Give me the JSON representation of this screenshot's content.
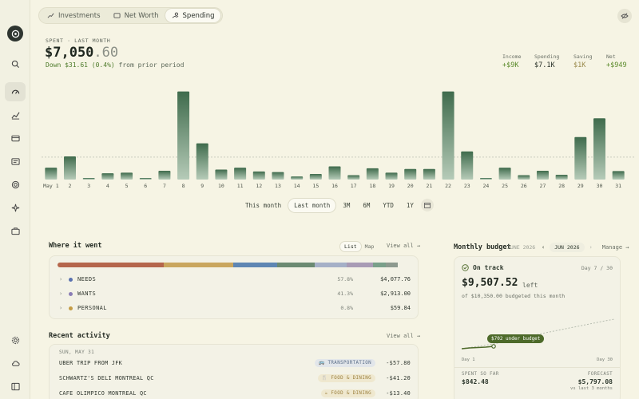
{
  "nav": {
    "tabs": [
      {
        "label": "Investments",
        "icon": "trend-up-icon",
        "active": false
      },
      {
        "label": "Net Worth",
        "icon": "wallet-icon",
        "active": false
      },
      {
        "label": "Spending",
        "icon": "hand-coins-icon",
        "active": true
      }
    ]
  },
  "sidebar": {
    "icons": [
      "logo-icon",
      "search-icon",
      "dashboard-icon",
      "chart-icon",
      "card-icon",
      "receipt-icon",
      "target-icon",
      "sparkle-icon",
      "briefcase-icon",
      "settings-icon",
      "cloud-icon",
      "collapse-icon"
    ]
  },
  "summary": {
    "label": "SPENT · LAST MONTH",
    "amount_main": "$7,050",
    "amount_cents": ".60",
    "delta_neg": "Down $31.61 (0.4%)",
    "delta_rest": " from prior period"
  },
  "stats": [
    {
      "label": "Income",
      "value": "+$9K"
    },
    {
      "label": "Spending",
      "value": "$7.1K"
    },
    {
      "label": "Saving",
      "value": "$1K"
    },
    {
      "label": "Net",
      "value": "+$949"
    }
  ],
  "chart_data": {
    "type": "bar",
    "categories": [
      "May 1",
      "2",
      "3",
      "4",
      "5",
      "6",
      "7",
      "8",
      "9",
      "10",
      "11",
      "12",
      "13",
      "14",
      "15",
      "16",
      "17",
      "18",
      "19",
      "20",
      "21",
      "22",
      "23",
      "24",
      "25",
      "26",
      "27",
      "28",
      "29",
      "30",
      "31"
    ],
    "values": [
      95,
      185,
      8,
      50,
      55,
      8,
      70,
      705,
      290,
      80,
      95,
      65,
      60,
      25,
      45,
      105,
      35,
      90,
      55,
      85,
      85,
      705,
      225,
      8,
      95,
      35,
      70,
      38,
      340,
      490,
      68
    ],
    "ylim": [
      0,
      760
    ],
    "avg_line": 180,
    "colors": {
      "bar_top": "#3f6b4c",
      "bar_bottom": "#b6cbb8"
    }
  },
  "periods": {
    "options": [
      "This month",
      "Last month",
      "3M",
      "6M",
      "YTD",
      "1Y"
    ],
    "active": "Last month",
    "calendar_icon": "calendar-icon"
  },
  "where": {
    "title": "Where it went",
    "toggle": [
      "List",
      "Map"
    ],
    "view_all": "View all →",
    "segments": [
      {
        "color": "#b5664c",
        "pct": 30
      },
      {
        "color": "#c9a65e",
        "pct": 19.5
      },
      {
        "color": "#5e86b3",
        "pct": 12.5
      },
      {
        "color": "#6b8a72",
        "pct": 10.5
      },
      {
        "color": "#a5b0c7",
        "pct": 9
      },
      {
        "color": "#a89bb5",
        "pct": 7.5
      },
      {
        "color": "#7aa08a",
        "pct": 3.5
      },
      {
        "color": "#8d9a8f",
        "pct": 3.5
      }
    ],
    "rows": [
      {
        "name": "NEEDS",
        "pct": "57.8%",
        "amount": "$4,077.76",
        "color": "#5a72b0"
      },
      {
        "name": "WANTS",
        "pct": "41.3%",
        "amount": "$2,913.00",
        "color": "#8a7db5"
      },
      {
        "name": "PERSONAL",
        "pct": "0.8%",
        "amount": "$59.84",
        "color": "#c49c45"
      }
    ]
  },
  "activity": {
    "title": "Recent activity",
    "view_all": "View all →",
    "date": "SUN, MAY 31",
    "rows": [
      {
        "desc": "UBER TRIP FROM JFK",
        "tag": "TRANSPORTATION",
        "tag_type": "transport",
        "amount": "-$57.80"
      },
      {
        "desc": "SCHWARTZ'S DELI MONTREAL QC",
        "tag": "FOOD & DINING",
        "tag_type": "food",
        "amount": "-$41.20"
      },
      {
        "desc": "CAFE OLIMPICO MONTREAL QC",
        "tag": "FOOD & DINING",
        "tag_type": "food",
        "amount": "-$13.40"
      }
    ]
  },
  "budget": {
    "title": "Monthly budget",
    "subtitle": "JUNE 2026",
    "month": "JUN 2026",
    "manage": "Manage →",
    "status": "On track",
    "day": "Day 7 / 30",
    "left_amount": "$9,507.52",
    "left_label": "left",
    "of_text": "of $10,350.00 budgeted this month",
    "under_badge": "$702 under budget",
    "day_start": "Day 1",
    "day_end": "Day 30",
    "spent_label": "SPENT SO FAR",
    "spent_value": "$842.48",
    "forecast_label": "FORECAST",
    "forecast_value": "$5,797.08",
    "forecast_sub": "vs last 3 months"
  }
}
